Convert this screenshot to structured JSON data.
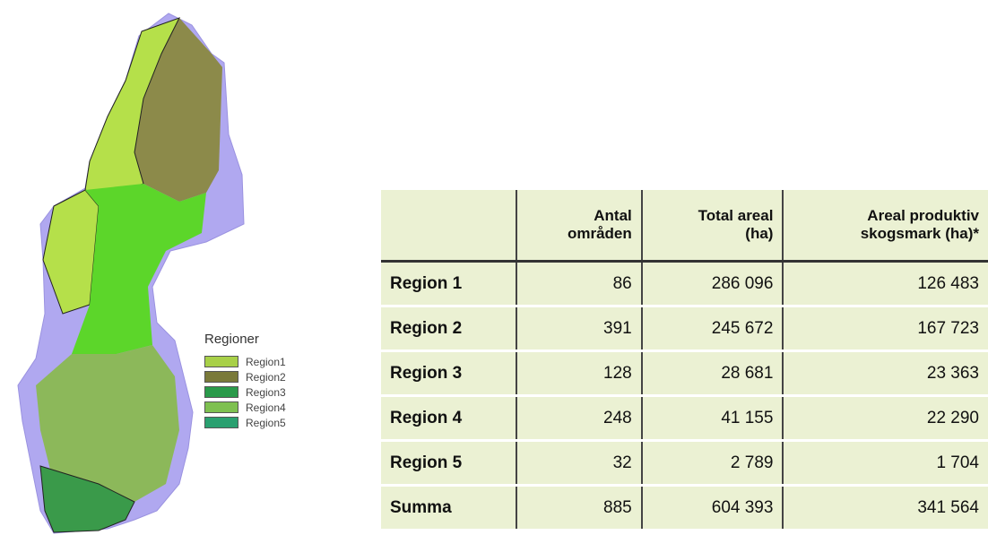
{
  "legend": {
    "title": "Regioner",
    "items": [
      "Region1",
      "Region2",
      "Region3",
      "Region4",
      "Region5"
    ]
  },
  "table": {
    "header": [
      [
        "Antal",
        "områden"
      ],
      [
        "Total areal",
        "(ha)"
      ],
      [
        "Areal produktiv",
        "skogsmark (ha)*"
      ]
    ],
    "rows": [
      [
        "Region 1",
        "86",
        "286 096",
        "126 483"
      ],
      [
        "Region 2",
        "391",
        "245 672",
        "167 723"
      ],
      [
        "Region 3",
        "128",
        "28 681",
        "23 363"
      ],
      [
        "Region 4",
        "248",
        "41 155",
        "22 290"
      ],
      [
        "Region 5",
        "32",
        "2 789",
        "1 704"
      ],
      [
        "Summa",
        "885",
        "604 393",
        "341 564"
      ]
    ]
  }
}
